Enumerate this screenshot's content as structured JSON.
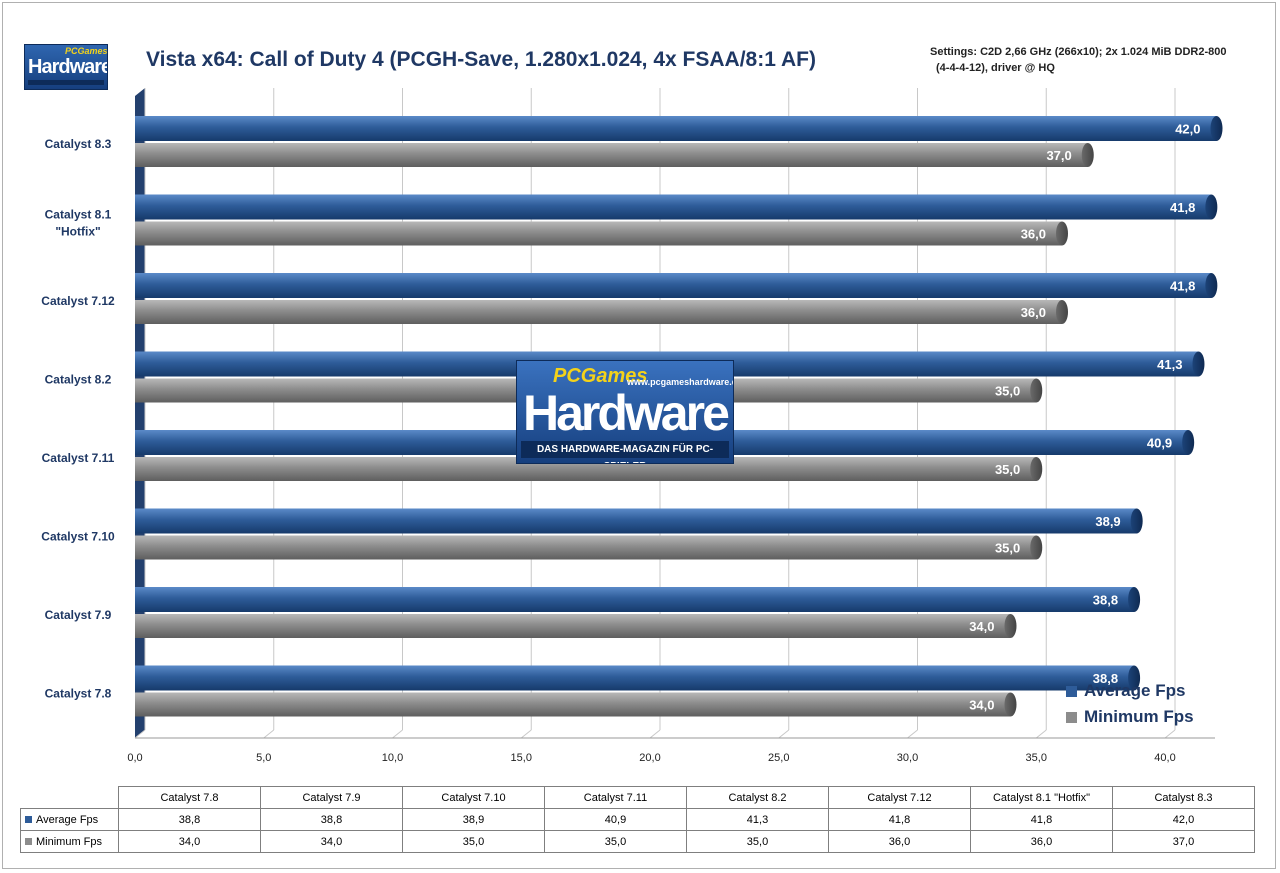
{
  "header": {
    "logo_text": "Hardware",
    "logo_small": "PCGames",
    "title": "Vista x64: Call of Duty 4 (PCGH-Save, 1.280x1.024, 4x FSAA/8:1 AF)",
    "settings_line1": "Settings: C2D 2,66 GHz (266x10); 2x 1.024 MiB DDR2-800",
    "settings_line2": "(4-4-4-12), driver @ HQ"
  },
  "watermark": {
    "small": "PCGames",
    "url": "www.pcgameshardware.de",
    "big": "Hardware",
    "tagline": "DAS HARDWARE-MAGAZIN FÜR PC-SPIELER"
  },
  "colors": {
    "average": "#2e5c99",
    "minimum": "#8c8c8c",
    "text_dark": "#1f3864"
  },
  "chart_data": {
    "type": "bar",
    "orientation": "horizontal",
    "title": "Vista x64: Call of Duty 4 (PCGH-Save, 1.280x1.024, 4x FSAA/8:1 AF)",
    "categories": [
      "Catalyst 8.3",
      "Catalyst 8.1 \"Hotfix\"",
      "Catalyst 7.12",
      "Catalyst 8.2",
      "Catalyst 7.11",
      "Catalyst 7.10",
      "Catalyst 7.9",
      "Catalyst 7.8"
    ],
    "series": [
      {
        "name": "Average Fps",
        "values": [
          42.0,
          41.8,
          41.8,
          41.3,
          40.9,
          38.9,
          38.8,
          38.8
        ],
        "labels": [
          "42,0",
          "41,8",
          "41,8",
          "41,3",
          "40,9",
          "38,9",
          "38,8",
          "38,8"
        ]
      },
      {
        "name": "Minimum Fps",
        "values": [
          37.0,
          36.0,
          36.0,
          35.0,
          35.0,
          35.0,
          34.0,
          34.0
        ],
        "labels": [
          "37,0",
          "36,0",
          "36,0",
          "35,0",
          "35,0",
          "35,0",
          "34,0",
          "34,0"
        ]
      }
    ],
    "xlim": [
      0,
      42
    ],
    "xticks": [
      0,
      5,
      10,
      15,
      20,
      25,
      30,
      35,
      40
    ],
    "xtick_labels": [
      "0,0",
      "5,0",
      "10,0",
      "15,0",
      "20,0",
      "25,0",
      "30,0",
      "35,0",
      "40,0"
    ],
    "grid": true,
    "legend_position": "bottom-right"
  },
  "data_table": {
    "columns": [
      "Catalyst 7.8",
      "Catalyst 7.9",
      "Catalyst 7.10",
      "Catalyst 7.11",
      "Catalyst 8.2",
      "Catalyst 7.12",
      "Catalyst 8.1 \"Hotfix\"",
      "Catalyst 8.3"
    ],
    "rows": [
      {
        "name": "Average Fps",
        "values": [
          "38,8",
          "38,8",
          "38,9",
          "40,9",
          "41,3",
          "41,8",
          "41,8",
          "42,0"
        ]
      },
      {
        "name": "Minimum Fps",
        "values": [
          "34,0",
          "34,0",
          "35,0",
          "35,0",
          "35,0",
          "36,0",
          "36,0",
          "37,0"
        ]
      }
    ]
  }
}
